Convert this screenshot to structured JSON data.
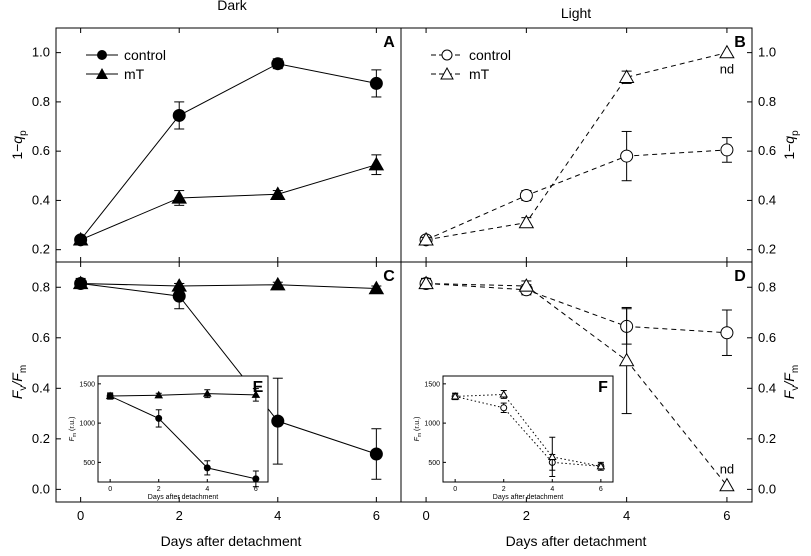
{
  "figure": {
    "column_titles": [
      "Dark",
      "Light"
    ],
    "xlabel": "Days after detachment"
  },
  "chart_data": [
    {
      "panel": "A",
      "type": "line",
      "column": "Dark",
      "ylabel": "1−q",
      "ylabel_sub": "p",
      "x": [
        0,
        2,
        4,
        6
      ],
      "xlim": [
        -0.5,
        6.5
      ],
      "ylim": [
        0.15,
        1.1
      ],
      "yticks": [
        0.2,
        0.4,
        0.6,
        0.8,
        1.0
      ],
      "yticklabels": [
        "0.2",
        "0.4",
        "0.6",
        "0.8",
        "1.0"
      ],
      "legend_position": "top-left",
      "series": [
        {
          "name": "control",
          "marker": "circle",
          "fill": "filled",
          "line": "solid",
          "values": [
            0.24,
            0.745,
            0.955,
            0.875
          ],
          "errors": [
            0.01,
            0.055,
            0.02,
            0.055
          ]
        },
        {
          "name": "mT",
          "marker": "triangle",
          "fill": "filled",
          "line": "solid",
          "values": [
            0.24,
            0.41,
            0.425,
            0.545
          ],
          "errors": [
            0.01,
            0.03,
            0.015,
            0.04
          ]
        }
      ]
    },
    {
      "panel": "B",
      "type": "line",
      "column": "Light",
      "ylabel": "1−q",
      "ylabel_sub": "p",
      "x": [
        0,
        2,
        4,
        6
      ],
      "xlim": [
        -0.5,
        6.5
      ],
      "ylim": [
        0.15,
        1.1
      ],
      "yticks": [
        0.2,
        0.4,
        0.6,
        0.8,
        1.0
      ],
      "yticklabels": [
        "0.2",
        "0.4",
        "0.6",
        "0.8",
        "1.0"
      ],
      "legend_position": "top-left",
      "annotations": [
        {
          "text": "nd",
          "x": 6
        }
      ],
      "series": [
        {
          "name": "control",
          "marker": "circle",
          "fill": "open",
          "line": "dashed",
          "values": [
            0.24,
            0.42,
            0.58,
            0.605
          ],
          "errors": [
            0.01,
            0.02,
            0.1,
            0.05
          ]
        },
        {
          "name": "mT",
          "marker": "triangle",
          "fill": "open",
          "line": "dashed",
          "values": [
            0.24,
            0.31,
            0.9,
            1.0
          ],
          "errors": [
            0.01,
            0.02,
            0.025,
            0
          ]
        }
      ]
    },
    {
      "panel": "C",
      "type": "line",
      "column": "Dark",
      "ylabel": "F",
      "ylabel_sub": "v",
      "ylabel_mid": "/F",
      "ylabel_sub2": "m",
      "x": [
        0,
        2,
        4,
        6
      ],
      "xlim": [
        -0.5,
        6.5
      ],
      "ylim": [
        -0.05,
        0.9
      ],
      "yticks": [
        0.0,
        0.2,
        0.4,
        0.6,
        0.8
      ],
      "yticklabels": [
        "0.0",
        "0.2",
        "0.4",
        "0.6",
        "0.8"
      ],
      "xticks": [
        0,
        2,
        4,
        6
      ],
      "xticklabels": [
        "0",
        "2",
        "4",
        "6"
      ],
      "series": [
        {
          "name": "control",
          "marker": "circle",
          "fill": "filled",
          "line": "solid",
          "values": [
            0.815,
            0.765,
            0.27,
            0.14
          ],
          "errors": [
            0.02,
            0.05,
            0.17,
            0.1
          ]
        },
        {
          "name": "mT",
          "marker": "triangle",
          "fill": "filled",
          "line": "solid",
          "values": [
            0.815,
            0.805,
            0.81,
            0.795
          ],
          "errors": [
            0.01,
            0.01,
            0.01,
            0.01
          ]
        }
      ]
    },
    {
      "panel": "D",
      "type": "line",
      "column": "Light",
      "ylabel": "F",
      "ylabel_sub": "v",
      "ylabel_mid": "/F",
      "ylabel_sub2": "m",
      "x": [
        0,
        2,
        4,
        6
      ],
      "xlim": [
        -0.5,
        6.5
      ],
      "ylim": [
        -0.05,
        0.9
      ],
      "yticks": [
        0.0,
        0.2,
        0.4,
        0.6,
        0.8
      ],
      "yticklabels": [
        "0.0",
        "0.2",
        "0.4",
        "0.6",
        "0.8"
      ],
      "xticks": [
        0,
        2,
        4,
        6
      ],
      "xticklabels": [
        "0",
        "2",
        "4",
        "6"
      ],
      "annotations": [
        {
          "text": "nd",
          "x": 6
        }
      ],
      "series": [
        {
          "name": "control",
          "marker": "circle",
          "fill": "open",
          "line": "dashed",
          "values": [
            0.815,
            0.79,
            0.645,
            0.62
          ],
          "errors": [
            0.02,
            0.02,
            0.07,
            0.09
          ]
        },
        {
          "name": "mT",
          "marker": "triangle",
          "fill": "open",
          "line": "dashed",
          "values": [
            0.815,
            0.805,
            0.51,
            0.015
          ],
          "errors": [
            0.02,
            0.02,
            0.21,
            0
          ]
        }
      ]
    },
    {
      "panel": "E",
      "type": "line",
      "inset_of": "C",
      "xlabel": "Days after detachment",
      "ylabel": "F",
      "ylabel_sub": "m",
      "ylabel_unit": " (r.u.)",
      "x": [
        0,
        2,
        4,
        6
      ],
      "xlim": [
        -0.5,
        6.5
      ],
      "ylim": [
        250,
        1600
      ],
      "yticks": [
        500,
        1000,
        1500
      ],
      "yticklabels": [
        "500",
        "1000",
        "1500"
      ],
      "xticks": [
        0,
        2,
        4,
        6
      ],
      "xticklabels": [
        "0",
        "2",
        "4",
        "6"
      ],
      "series": [
        {
          "name": "control",
          "marker": "circle",
          "fill": "filled",
          "line": "solid",
          "values": [
            1345,
            1060,
            430,
            290
          ],
          "errors": [
            40,
            110,
            90,
            100
          ]
        },
        {
          "name": "mT",
          "marker": "triangle",
          "fill": "filled",
          "line": "solid",
          "values": [
            1345,
            1355,
            1375,
            1360
          ],
          "errors": [
            30,
            25,
            50,
            80
          ]
        }
      ]
    },
    {
      "panel": "F",
      "type": "line",
      "inset_of": "D",
      "xlabel": "Days after detachment",
      "ylabel": "F",
      "ylabel_sub": "m",
      "ylabel_unit": " (r.u.)",
      "x": [
        0,
        2,
        4,
        6
      ],
      "xlim": [
        -0.5,
        6.5
      ],
      "ylim": [
        250,
        1600
      ],
      "yticks": [
        500,
        1000,
        1500
      ],
      "yticklabels": [
        "500",
        "1000",
        "1500"
      ],
      "xticks": [
        0,
        2,
        4,
        6
      ],
      "xticklabels": [
        "0",
        "2",
        "4",
        "6"
      ],
      "series": [
        {
          "name": "control",
          "marker": "circle",
          "fill": "open",
          "line": "dotted",
          "values": [
            1340,
            1195,
            500,
            450
          ],
          "errors": [
            40,
            60,
            100,
            50
          ]
        },
        {
          "name": "mT",
          "marker": "triangle",
          "fill": "open",
          "line": "dotted",
          "values": [
            1340,
            1365,
            570,
            450
          ],
          "errors": [
            40,
            50,
            250,
            30
          ]
        }
      ]
    }
  ]
}
